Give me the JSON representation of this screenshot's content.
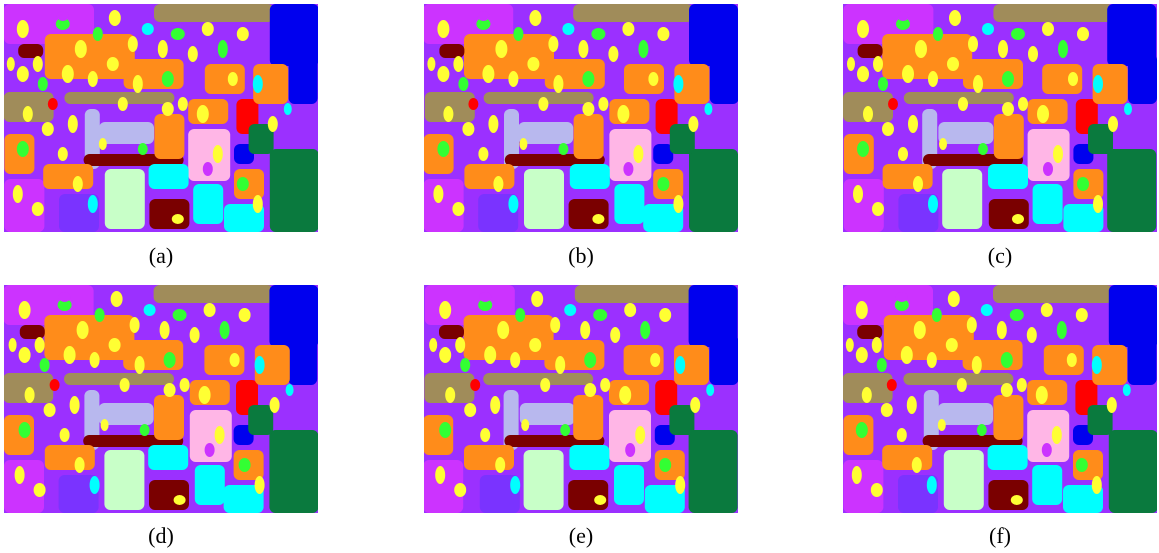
{
  "figure": {
    "panels": [
      {
        "id": "a",
        "caption": "(a)"
      },
      {
        "id": "b",
        "caption": "(b)"
      },
      {
        "id": "c",
        "caption": "(c)"
      },
      {
        "id": "d",
        "caption": "(d)"
      },
      {
        "id": "e",
        "caption": "(e)"
      },
      {
        "id": "f",
        "caption": "(f)"
      }
    ]
  },
  "colors": {
    "background": "#ffffff",
    "purple": "#9b30ff",
    "magenta": "#cc33ff",
    "orange": "#ff8c1a",
    "yellow": "#ffff33",
    "blue": "#0000ee",
    "red": "#ff0000",
    "green": "#33ff33",
    "dark_green": "#0a7a3e",
    "cyan": "#00ffff",
    "light_green": "#c8ffc8",
    "lavender": "#b8b8ee",
    "pink": "#ffb6e6",
    "maroon": "#7a0000",
    "tan": "#a08c5a",
    "violet": "#7a33ff"
  }
}
